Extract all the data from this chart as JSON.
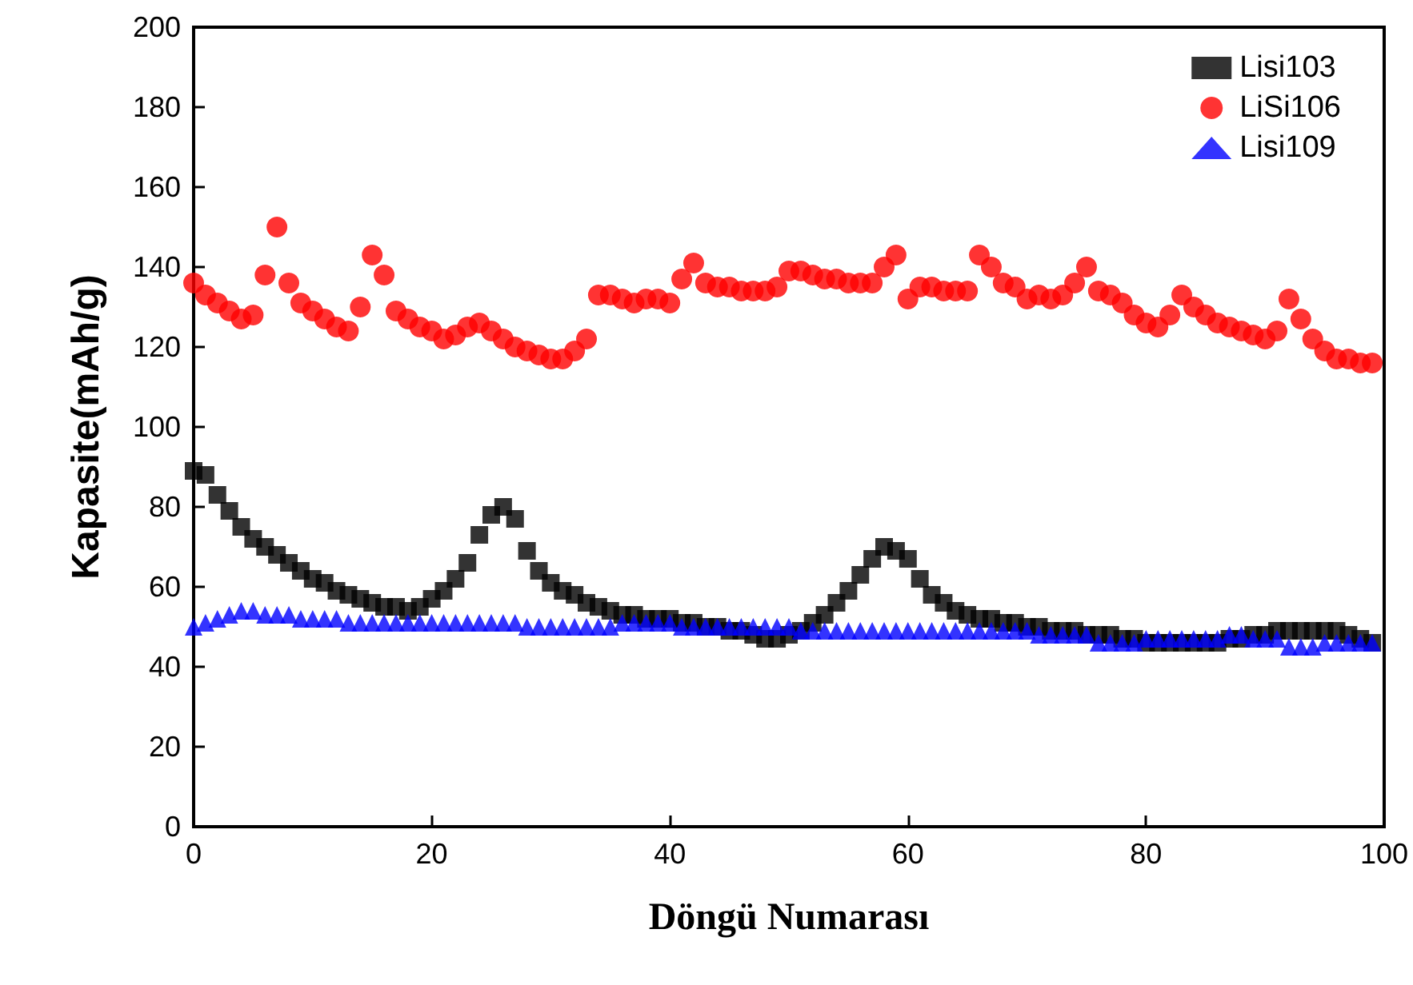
{
  "chart_data": {
    "type": "scatter",
    "xlabel": "Döngü Numarası",
    "ylabel": "Kapasite(mAh/g)",
    "x": [
      0,
      1,
      2,
      3,
      4,
      5,
      6,
      7,
      8,
      9,
      10,
      11,
      12,
      13,
      14,
      15,
      16,
      17,
      18,
      19,
      20,
      21,
      22,
      23,
      24,
      25,
      26,
      27,
      28,
      29,
      30,
      31,
      32,
      33,
      34,
      35,
      36,
      37,
      38,
      39,
      40,
      41,
      42,
      43,
      44,
      45,
      46,
      47,
      48,
      49,
      50,
      51,
      52,
      53,
      54,
      55,
      56,
      57,
      58,
      59,
      60,
      61,
      62,
      63,
      64,
      65,
      66,
      67,
      68,
      69,
      70,
      71,
      72,
      73,
      74,
      75,
      76,
      77,
      78,
      79,
      80,
      81,
      82,
      83,
      84,
      85,
      86,
      87,
      88,
      89,
      90,
      91,
      92,
      93,
      94,
      95,
      96,
      97,
      98,
      99
    ],
    "series": [
      {
        "name": "Lisi103",
        "color": "#000000",
        "marker": "square",
        "values": [
          89,
          88,
          83,
          79,
          75,
          72,
          70,
          68,
          66,
          64,
          62,
          61,
          59,
          58,
          57,
          56,
          55,
          55,
          54,
          55,
          57,
          59,
          62,
          66,
          73,
          78,
          80,
          77,
          69,
          64,
          61,
          59,
          58,
          56,
          55,
          54,
          53,
          53,
          52,
          52,
          52,
          51,
          51,
          50,
          50,
          49,
          49,
          48,
          47,
          47,
          48,
          49,
          51,
          53,
          56,
          59,
          63,
          67,
          70,
          69,
          67,
          62,
          58,
          56,
          54,
          53,
          52,
          52,
          51,
          51,
          50,
          50,
          49,
          49,
          49,
          48,
          48,
          48,
          47,
          47,
          46,
          46,
          46,
          46,
          46,
          46,
          46,
          47,
          47,
          48,
          48,
          49,
          49,
          49,
          49,
          49,
          49,
          48,
          47,
          46
        ]
      },
      {
        "name": "LiSi106",
        "color": "#ff0000",
        "marker": "circle",
        "values": [
          136,
          133,
          131,
          129,
          127,
          128,
          138,
          150,
          136,
          131,
          129,
          127,
          125,
          124,
          130,
          143,
          138,
          129,
          127,
          125,
          124,
          122,
          123,
          125,
          126,
          124,
          122,
          120,
          119,
          118,
          117,
          117,
          119,
          122,
          133,
          133,
          132,
          131,
          132,
          132,
          131,
          137,
          141,
          136,
          135,
          135,
          134,
          134,
          134,
          135,
          139,
          139,
          138,
          137,
          137,
          136,
          136,
          136,
          140,
          143,
          132,
          135,
          135,
          134,
          134,
          134,
          143,
          140,
          136,
          135,
          132,
          133,
          132,
          133,
          136,
          140,
          134,
          133,
          131,
          128,
          126,
          125,
          128,
          133,
          130,
          128,
          126,
          125,
          124,
          123,
          122,
          124,
          132,
          127,
          122,
          119,
          117,
          117,
          116,
          116
        ]
      },
      {
        "name": "Lisi109",
        "color": "#0000ff",
        "marker": "triangle",
        "values": [
          50,
          51,
          52,
          53,
          54,
          54,
          53,
          53,
          53,
          52,
          52,
          52,
          52,
          51,
          51,
          51,
          51,
          51,
          51,
          51,
          51,
          51,
          51,
          51,
          51,
          51,
          51,
          51,
          50,
          50,
          50,
          50,
          50,
          50,
          50,
          50,
          51,
          51,
          51,
          51,
          51,
          50,
          50,
          50,
          50,
          50,
          50,
          50,
          50,
          50,
          50,
          49,
          49,
          49,
          49,
          49,
          49,
          49,
          49,
          49,
          49,
          49,
          49,
          49,
          49,
          49,
          49,
          49,
          49,
          49,
          49,
          48,
          48,
          48,
          48,
          48,
          46,
          46,
          46,
          46,
          47,
          47,
          47,
          47,
          47,
          47,
          47,
          48,
          48,
          47,
          47,
          47,
          45,
          45,
          45,
          46,
          46,
          46,
          46,
          46
        ]
      }
    ],
    "xlim": [
      0,
      100
    ],
    "xticks": [
      0,
      20,
      40,
      60,
      80,
      100
    ],
    "ylim": [
      0,
      200
    ],
    "yticks": [
      0,
      20,
      40,
      60,
      80,
      100,
      120,
      140,
      160,
      180,
      200
    ],
    "grid": false,
    "legend": "top right"
  }
}
